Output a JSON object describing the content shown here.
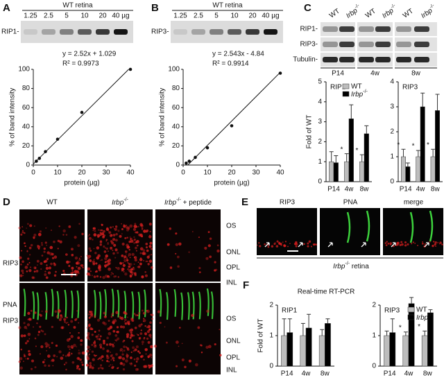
{
  "panels": {
    "A": {
      "label": "A",
      "blot": {
        "title": "WT retina",
        "lanes": [
          "1.25",
          "2.5",
          "5",
          "10",
          "20",
          "40 µg"
        ],
        "rows": [
          "RIP1-"
        ]
      },
      "chart": {
        "type": "scatter",
        "x": [
          1.25,
          2.5,
          5,
          10,
          20,
          40
        ],
        "y": [
          4,
          7,
          14,
          27,
          55,
          100
        ],
        "xlim": [
          0,
          40
        ],
        "ylim": [
          0,
          100
        ],
        "xticks": [
          0,
          10,
          20,
          30,
          40
        ],
        "yticks": [
          0,
          20,
          40,
          60,
          80,
          100
        ],
        "xlabel": "protein (µg)",
        "ylabel": "% of band intensity",
        "equation": "y = 2.52x + 1.029",
        "r2": "R² = 0.9973",
        "fit": {
          "slope": 2.52,
          "intercept": 1.029
        }
      }
    },
    "B": {
      "label": "B",
      "blot": {
        "title": "WT retina",
        "lanes": [
          "1.25",
          "2.5",
          "5",
          "10",
          "20",
          "40 µg"
        ],
        "rows": [
          "RIP3-"
        ]
      },
      "chart": {
        "type": "scatter",
        "x": [
          1.25,
          2.5,
          5,
          10,
          20,
          40
        ],
        "y": [
          2,
          4,
          8,
          18,
          41,
          96
        ],
        "xlim": [
          0,
          40
        ],
        "ylim": [
          0,
          100
        ],
        "xticks": [
          0,
          10,
          20,
          30,
          40
        ],
        "yticks": [
          0,
          20,
          40,
          60,
          80,
          100
        ],
        "xlabel": "protein (µg)",
        "ylabel": "% of band intensity",
        "equation": "y = 2.543x - 4.84",
        "r2": "R² = 0.9914",
        "fit": {
          "slope": 2.543,
          "intercept": -4.84
        }
      }
    },
    "C": {
      "label": "C",
      "blot": {
        "columns": [
          "WT",
          {
            "base": "Irbp",
            "sup": "-/-"
          },
          "WT",
          {
            "base": "Irbp",
            "sup": "-/-"
          },
          "WT",
          {
            "base": "Irbp",
            "sup": "-/-"
          }
        ],
        "rows": [
          "RIP1-",
          "RIP3-",
          "Tubulin-"
        ],
        "groups": [
          "P14",
          "4w",
          "8w"
        ]
      },
      "charts": [
        {
          "type": "bar",
          "title": "RIP1",
          "ylabel": "Fold of WT",
          "categories": [
            "P14",
            "4w",
            "8w"
          ],
          "ylim": [
            0,
            5
          ],
          "yticks": [
            0,
            1,
            2,
            3,
            4,
            5
          ],
          "legend": "top-right",
          "series": [
            {
              "name": "WT",
              "color": "#bdbdbd",
              "values": [
                1,
                1,
                1
              ],
              "errors": [
                0.5,
                0.4,
                0.35
              ]
            },
            {
              "name": {
                "base": "Irbp",
                "sup": "-/-"
              },
              "color": "#000000",
              "values": [
                0.95,
                3.15,
                2.4
              ],
              "errors": [
                0.35,
                0.7,
                0.4
              ],
              "stars": [
                null,
                "*",
                "*"
              ]
            }
          ]
        },
        {
          "type": "bar",
          "title": "RIP3",
          "categories": [
            "P14",
            "4w",
            "8w"
          ],
          "ylim": [
            0,
            4
          ],
          "yticks": [
            0,
            1,
            2,
            3,
            4
          ],
          "series": [
            {
              "name": "WT",
              "color": "#bdbdbd",
              "values": [
                1,
                1,
                1
              ],
              "errors": [
                0.3,
                0.25,
                0.3
              ]
            },
            {
              "name": {
                "base": "Irbp",
                "sup": "-/-"
              },
              "color": "#000000",
              "values": [
                0.6,
                3.0,
                2.85
              ],
              "errors": [
                0.15,
                0.55,
                0.65
              ],
              "stars": [
                "*",
                "*",
                "*"
              ]
            }
          ]
        }
      ]
    },
    "D": {
      "label": "D",
      "columns": [
        "WT",
        {
          "base": "Irbp",
          "sup": "-/-"
        },
        {
          "base": "Irbp",
          "sup": "-/-",
          "rest": " + peptide"
        }
      ],
      "rows": [
        {
          "stains": [
            "RIP3"
          ],
          "layers": [
            "OS",
            "ONL",
            "OPL",
            "INL"
          ]
        },
        {
          "stains": [
            "PNA",
            "RIP3"
          ],
          "layers": [
            "OS",
            "ONL",
            "OPL",
            "INL"
          ]
        }
      ]
    },
    "E": {
      "label": "E",
      "columns": [
        "RIP3",
        "PNA",
        "merge"
      ],
      "caption": {
        "base": "Irbp",
        "sup": "-/-",
        "rest": " retina"
      }
    },
    "F": {
      "label": "F",
      "title": "Real-time RT-PCR",
      "charts": [
        {
          "type": "bar",
          "title": "RIP1",
          "ylabel": "Fold of WT",
          "categories": [
            "P14",
            "4w",
            "8w"
          ],
          "ylim": [
            0,
            2
          ],
          "yticks": [
            0,
            1,
            2
          ],
          "series": [
            {
              "name": "WT",
              "color": "#bdbdbd",
              "values": [
                1,
                1,
                1
              ],
              "errors": [
                0.55,
                0.4,
                0.2
              ]
            },
            {
              "name": {
                "base": "Irbp",
                "sup": "-/-"
              },
              "color": "#000000",
              "values": [
                1.1,
                1.25,
                1.4
              ],
              "errors": [
                0.45,
                0.45,
                0.15
              ]
            }
          ]
        },
        {
          "type": "bar",
          "title": "RIP3",
          "categories": [
            "P14",
            "4w",
            "8w"
          ],
          "ylim": [
            0,
            2
          ],
          "yticks": [
            0,
            1,
            2
          ],
          "legend": "top-right",
          "series": [
            {
              "name": "WT",
              "color": "#bdbdbd",
              "values": [
                1,
                1,
                1
              ],
              "errors": [
                0.15,
                0.12,
                0.15
              ]
            },
            {
              "name": {
                "base": "Irbp",
                "sup": "-/-"
              },
              "color": "#000000",
              "values": [
                1.1,
                2.05,
                1.75
              ],
              "errors": [
                0.45,
                0.2,
                0.1
              ],
              "stars": [
                null,
                "*",
                "*"
              ]
            }
          ]
        }
      ]
    }
  }
}
